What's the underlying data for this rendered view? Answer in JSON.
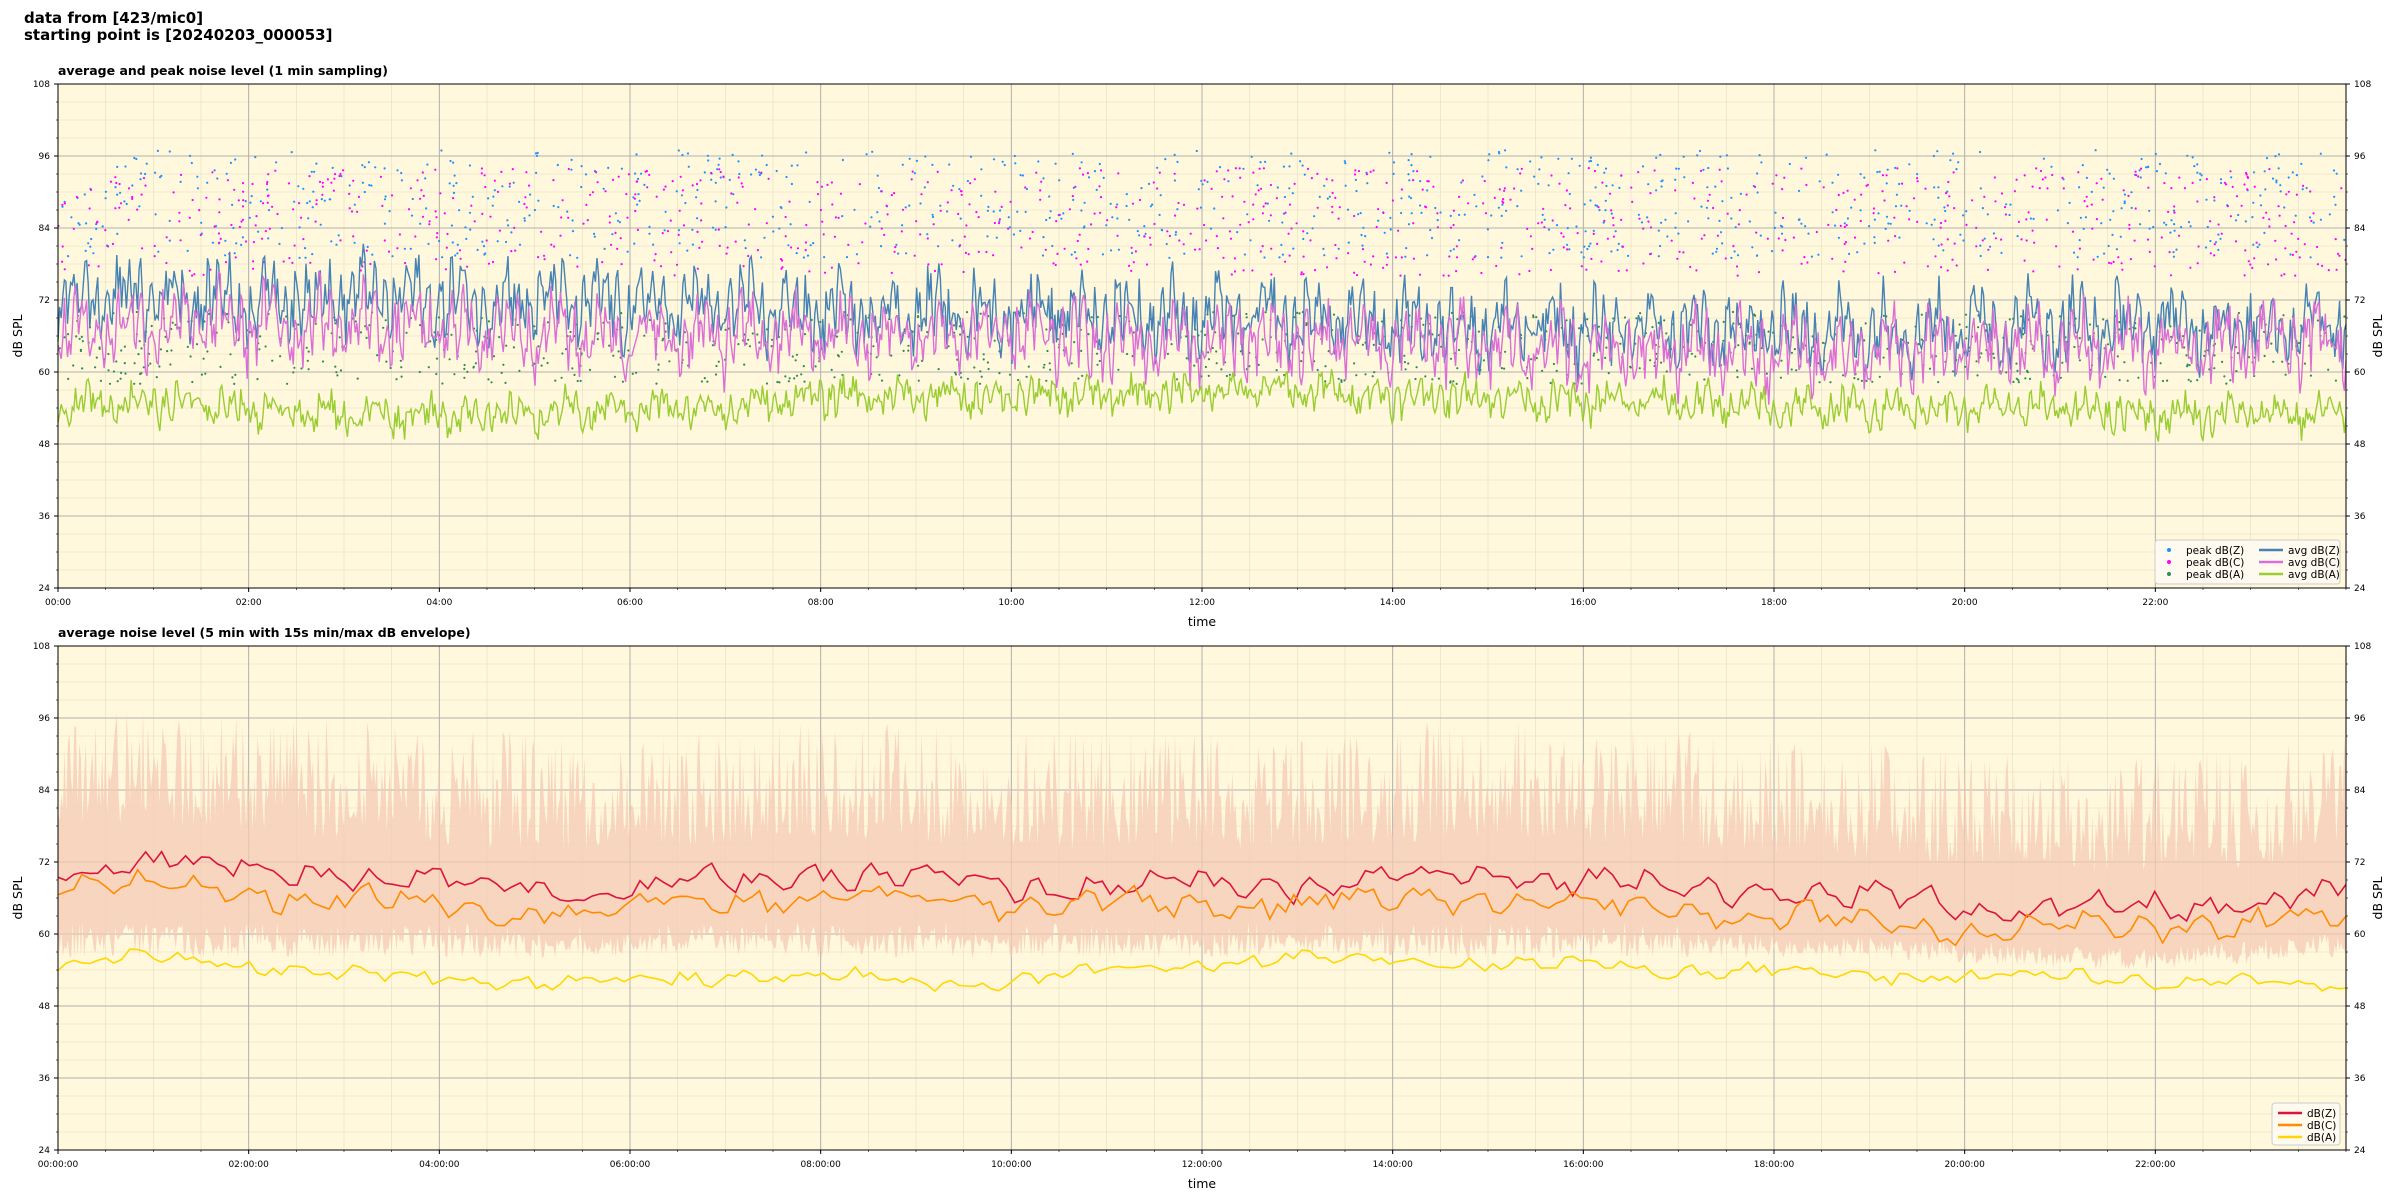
{
  "header": {
    "line1": "data from [423/mic0]",
    "line2": "starting point is [20240203_000053]"
  },
  "chart_data": [
    {
      "type": "line",
      "title": "average and peak noise level (1 min sampling)",
      "xlabel": "time",
      "ylabel": "dB SPL",
      "xlim": [
        0,
        24
      ],
      "ylim": [
        24,
        108
      ],
      "y_ticks": [
        24,
        36,
        48,
        60,
        72,
        84,
        96,
        108
      ],
      "x_ticks": [
        "00:00",
        "02:00",
        "04:00",
        "06:00",
        "08:00",
        "10:00",
        "12:00",
        "14:00",
        "16:00",
        "18:00",
        "20:00",
        "22:00"
      ],
      "grid": true,
      "legend_position": "bottom-right",
      "series": [
        {
          "name": "peak dB(Z)",
          "kind": "scatter",
          "color": "#1e90ff",
          "approx_mean": 88
        },
        {
          "name": "peak dB(C)",
          "kind": "scatter",
          "color": "#ff00ff",
          "approx_mean": 85
        },
        {
          "name": "peak dB(A)",
          "kind": "scatter",
          "color": "#2e8b57",
          "approx_mean": 62
        },
        {
          "name": "avg dB(Z)",
          "kind": "line",
          "color": "#4682b4",
          "profile": [
            72,
            73,
            72,
            73,
            72,
            72,
            71,
            71,
            70,
            70,
            70,
            70,
            69,
            69,
            68,
            68,
            67,
            67,
            67,
            67,
            68,
            68,
            68,
            68,
            69
          ]
        },
        {
          "name": "avg dB(C)",
          "kind": "line",
          "color": "#da70d6",
          "profile": [
            67,
            68,
            68,
            68,
            67,
            67,
            66,
            66,
            66,
            66,
            66,
            65,
            65,
            65,
            65,
            64,
            64,
            64,
            63,
            63,
            64,
            64,
            64,
            65,
            65
          ]
        },
        {
          "name": "avg dB(A)",
          "kind": "line",
          "color": "#9acd32",
          "profile": [
            55,
            55,
            54,
            53,
            53,
            53,
            54,
            54,
            56,
            56,
            56,
            56,
            57,
            57,
            56,
            56,
            55,
            55,
            54,
            54,
            54,
            54,
            53,
            53,
            53
          ]
        }
      ]
    },
    {
      "type": "area",
      "title": "average noise level (5 min with 15s min/max dB envelope)",
      "xlabel": "time",
      "ylabel": "dB SPL",
      "xlim": [
        0,
        24
      ],
      "ylim": [
        24,
        108
      ],
      "y_ticks": [
        24,
        36,
        48,
        60,
        72,
        84,
        96,
        108
      ],
      "x_ticks": [
        "00:00:00",
        "02:00:00",
        "04:00:00",
        "06:00:00",
        "08:00:00",
        "10:00:00",
        "12:00:00",
        "14:00:00",
        "16:00:00",
        "18:00:00",
        "20:00:00",
        "22:00:00"
      ],
      "grid": true,
      "legend_position": "bottom-right",
      "envelope": {
        "color": "#f6c9b5",
        "approx_min": 60,
        "approx_max": 90
      },
      "series": [
        {
          "name": "dB(Z)",
          "color": "#dc143c",
          "profile": [
            71,
            72,
            71,
            70,
            69,
            68,
            67,
            69,
            70,
            69,
            68,
            68,
            68,
            68,
            69,
            70,
            69,
            68,
            67,
            66,
            65,
            64,
            64,
            65,
            67
          ]
        },
        {
          "name": "dB(C)",
          "color": "#ff8c00",
          "profile": [
            68,
            68,
            67,
            66,
            65,
            64,
            64,
            66,
            66,
            66,
            65,
            65,
            65,
            65,
            66,
            66,
            65,
            64,
            63,
            62,
            61,
            61,
            61,
            62,
            63
          ]
        },
        {
          "name": "dB(A)",
          "color": "#ffd700",
          "profile": [
            55,
            56,
            55,
            53,
            53,
            52,
            52,
            53,
            53,
            52,
            52,
            54,
            55,
            56,
            56,
            55,
            55,
            54,
            54,
            53,
            53,
            53,
            52,
            52,
            51
          ]
        }
      ]
    }
  ]
}
